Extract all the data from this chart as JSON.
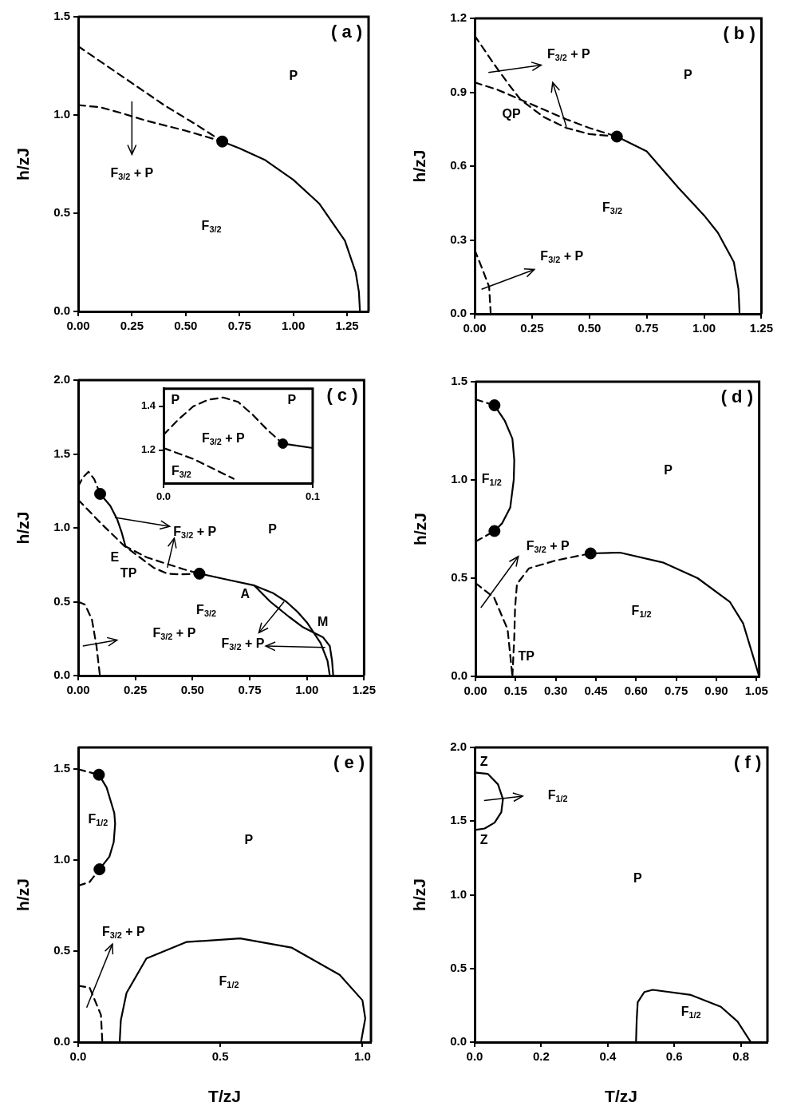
{
  "chart_data": [
    {
      "type": "line",
      "ylabel": "h/zJ",
      "xlim": [
        0,
        1.35
      ],
      "ylim": [
        0,
        1.5
      ],
      "xticks": [
        {
          "value": 0,
          "label": "0.00"
        },
        0.25,
        {
          "value": 0.5,
          "label": "0.50"
        },
        0.75,
        {
          "value": 1,
          "label": "1.00"
        },
        1.25
      ],
      "yticks": [
        {
          "value": 0,
          "label": "0.0"
        },
        0.5,
        {
          "value": 1,
          "label": "1.0"
        },
        1.5
      ],
      "series": [
        {
          "color": "#000000",
          "line_style": "dashed",
          "x": [
            0,
            0.2,
            0.4,
            0.55,
            0.67
          ],
          "values": [
            1.35,
            1.2,
            1.05,
            0.95,
            0.865
          ]
        },
        {
          "color": "#000000",
          "line_style": "dashed",
          "x": [
            0,
            0.1,
            0.2,
            0.32,
            0.5,
            0.67
          ],
          "values": [
            1.05,
            1.04,
            1.01,
            0.97,
            0.92,
            0.865
          ]
        },
        {
          "color": "#000000",
          "line_style": "solid",
          "x": [
            0.67,
            0.75,
            0.87,
            1.0,
            1.12,
            1.24,
            1.29,
            1.305,
            1.31
          ],
          "values": [
            0.865,
            0.83,
            0.77,
            0.67,
            0.55,
            0.36,
            0.2,
            0.1,
            0
          ]
        },
        {
          "type": "scatter",
          "marker": "circle",
          "color": "#000000",
          "x": [
            0.67
          ],
          "values": [
            0.865
          ]
        }
      ],
      "annotations": [
        "( a )",
        "P",
        "F$_{3/2}$ + P",
        "F$_{3/2}$"
      ]
    },
    {
      "type": "line",
      "ylabel": "h/zJ",
      "xlim": [
        0,
        1.25
      ],
      "ylim": [
        0,
        1.2
      ],
      "xticks": [
        {
          "value": 0,
          "label": "0.00"
        },
        0.25,
        {
          "value": 0.5,
          "label": "0.50"
        },
        0.75,
        {
          "value": 1,
          "label": "1.00"
        },
        1.25
      ],
      "yticks": [
        {
          "value": 0,
          "label": "0.0"
        },
        0.3,
        0.6,
        0.9,
        1.2
      ],
      "series": [
        {
          "color": "#000000",
          "line_style": "dashed",
          "x": [
            0,
            0.08,
            0.15,
            0.2,
            0.3,
            0.4,
            0.5,
            0.62
          ],
          "values": [
            1.13,
            1.02,
            0.93,
            0.87,
            0.8,
            0.755,
            0.73,
            0.72
          ]
        },
        {
          "color": "#000000",
          "line_style": "dashed",
          "x": [
            0,
            0.1,
            0.2,
            0.3,
            0.4,
            0.5,
            0.62
          ],
          "values": [
            0.94,
            0.91,
            0.87,
            0.83,
            0.79,
            0.755,
            0.72
          ]
        },
        {
          "color": "#000000",
          "line_style": "solid",
          "x": [
            0.62,
            0.75,
            0.89,
            1.0,
            1.06,
            1.13,
            1.15,
            1.155
          ],
          "values": [
            0.72,
            0.66,
            0.51,
            0.4,
            0.33,
            0.21,
            0.1,
            0
          ]
        },
        {
          "color": "#000000",
          "line_style": "dashed",
          "x": [
            0,
            0.03,
            0.063,
            0.07
          ],
          "values": [
            0.26,
            0.19,
            0.11,
            0
          ]
        },
        {
          "type": "scatter",
          "marker": "circle",
          "color": "#000000",
          "x": [
            0.62
          ],
          "values": [
            0.72
          ]
        }
      ],
      "annotations": [
        "( b )",
        "P",
        "F$_{3/2}$ + P",
        "QP",
        "F$_{3/2}$",
        "F$_{3/2}$ + P"
      ]
    },
    {
      "type": "line",
      "ylabel": "h/zJ",
      "xlim": [
        0,
        1.25
      ],
      "ylim": [
        0,
        2
      ],
      "xticks": [
        {
          "value": 0,
          "label": "0.00"
        },
        0.25,
        {
          "value": 0.5,
          "label": "0.50"
        },
        0.75,
        {
          "value": 1,
          "label": "1.00"
        },
        1.25
      ],
      "yticks": [
        {
          "value": 0,
          "label": "0.0"
        },
        0.5,
        {
          "value": 1,
          "label": "1.0"
        },
        1.5,
        {
          "value": 2,
          "label": "2.0"
        }
      ],
      "series": [
        {
          "color": "#000000",
          "line_style": "dashed",
          "x": [
            0,
            0.02,
            0.045,
            0.07,
            0.096
          ],
          "values": [
            1.28,
            1.34,
            1.38,
            1.33,
            1.23
          ]
        },
        {
          "color": "#000000",
          "line_style": "solid",
          "x": [
            0.096,
            0.14,
            0.17,
            0.19,
            0.206
          ],
          "values": [
            1.23,
            1.15,
            1.06,
            0.97,
            0.88
          ]
        },
        {
          "color": "#000000",
          "line_style": "dashed",
          "x": [
            0,
            0.1,
            0.2,
            0.27,
            0.33,
            0.39,
            0.45,
            0.53
          ],
          "values": [
            1.19,
            1.03,
            0.88,
            0.8,
            0.73,
            0.69,
            0.685,
            0.69
          ]
        },
        {
          "color": "#000000",
          "line_style": "dashed",
          "x": [
            0.2,
            0.3,
            0.4,
            0.46,
            0.53
          ],
          "values": [
            0.88,
            0.8,
            0.75,
            0.72,
            0.69
          ]
        },
        {
          "color": "#000000",
          "line_style": "solid",
          "x": [
            0.53,
            0.65,
            0.77,
            0.85,
            0.91,
            0.96,
            1.0,
            1.06,
            1.09,
            1.1
          ],
          "values": [
            0.69,
            0.65,
            0.61,
            0.56,
            0.5,
            0.43,
            0.36,
            0.22,
            0.1,
            0
          ]
        },
        {
          "color": "#000000",
          "line_style": "solid",
          "x": [
            0.77,
            0.84,
            0.92,
            0.98,
            1.03,
            1.07,
            1.1,
            1.11,
            1.115
          ],
          "values": [
            0.61,
            0.5,
            0.4,
            0.33,
            0.29,
            0.26,
            0.2,
            0.1,
            0
          ]
        },
        {
          "color": "#000000",
          "line_style": "dashed",
          "x": [
            0,
            0.03,
            0.06,
            0.08,
            0.095
          ],
          "values": [
            0.5,
            0.48,
            0.38,
            0.2,
            0
          ]
        },
        {
          "type": "scatter",
          "marker": "circle",
          "color": "#000000",
          "x": [
            0.096,
            0.53
          ],
          "values": [
            1.23,
            0.69
          ]
        }
      ],
      "annotations": [
        "( c )",
        {
          "text": "F$_{3/2}$ + P",
          "x": 0.16,
          "y": 1.07
        },
        "P",
        "E",
        "TP",
        "A",
        "M",
        "F$_{3/2}$",
        "F$_{3/2}$ + P",
        {
          "text": "F$_{3/2}$ + P",
          "x": 0.9,
          "y": 0.5
        }
      ]
    },
    {
      "type": "line",
      "xlim": [
        0,
        0.1
      ],
      "ylim": [
        1.05,
        1.48
      ],
      "xticks": [
        {
          "value": 0,
          "label": "0.0"
        },
        0.1
      ],
      "yticks": [
        1.2,
        1.4
      ],
      "series": [
        {
          "color": "#000000",
          "line_style": "dashed",
          "x": [
            0,
            0.01,
            0.02,
            0.03,
            0.04,
            0.05,
            0.06,
            0.07,
            0.08
          ],
          "values": [
            1.27,
            1.34,
            1.4,
            1.43,
            1.44,
            1.42,
            1.36,
            1.29,
            1.23
          ]
        },
        {
          "color": "#000000",
          "line_style": "solid",
          "x": [
            0.08,
            0.085,
            0.1
          ],
          "values": [
            1.23,
            1.225,
            1.21
          ]
        },
        {
          "color": "#000000",
          "line_style": "dashed",
          "x": [
            0,
            0.02,
            0.047
          ],
          "values": [
            1.21,
            1.16,
            1.07
          ]
        },
        {
          "type": "scatter",
          "marker": "circle",
          "color": "#000000",
          "x": [
            0.08
          ],
          "values": [
            1.23
          ]
        }
      ],
      "annotations": [
        "P",
        "P",
        "F$_{3/2}$ + P",
        "F$_{3/2}$"
      ]
    },
    {
      "type": "line",
      "ylabel": "h/zJ",
      "xlim": [
        0,
        1.06
      ],
      "ylim": [
        0,
        1.5
      ],
      "xticks": [
        {
          "value": 0,
          "label": "0.00"
        },
        0.15,
        {
          "value": 0.3,
          "label": "0.30"
        },
        0.45,
        {
          "value": 0.6,
          "label": "0.60"
        },
        0.75,
        {
          "value": 0.9,
          "label": "0.90"
        },
        1.05
      ],
      "yticks": [
        {
          "value": 0,
          "label": "0.0"
        },
        0.5,
        {
          "value": 1,
          "label": "1.0"
        },
        1.5
      ],
      "series": [
        {
          "color": "#000000",
          "line_style": "dashed",
          "x": [
            0,
            0.071
          ],
          "values": [
            1.41,
            1.38
          ]
        },
        {
          "color": "#000000",
          "line_style": "solid",
          "x": [
            0.071,
            0.11,
            0.138,
            0.145,
            0.143,
            0.13,
            0.1,
            0.071
          ],
          "values": [
            1.38,
            1.3,
            1.21,
            1.1,
            1.0,
            0.86,
            0.78,
            0.74
          ]
        },
        {
          "color": "#000000",
          "line_style": "dashed",
          "x": [
            0,
            0.071
          ],
          "values": [
            0.686,
            0.74
          ]
        },
        {
          "color": "#000000",
          "line_style": "dashed",
          "x": [
            0,
            0.07,
            0.12,
            0.138
          ],
          "values": [
            0.475,
            0.4,
            0.24,
            0
          ]
        },
        {
          "color": "#000000",
          "line_style": "dashed",
          "x": [
            0.138,
            0.145,
            0.148,
            0.155,
            0.2,
            0.3,
            0.43
          ],
          "values": [
            0,
            0.2,
            0.35,
            0.47,
            0.55,
            0.59,
            0.626
          ]
        },
        {
          "color": "#000000",
          "line_style": "solid",
          "x": [
            0.43,
            0.54,
            0.7,
            0.83,
            0.95,
            1.0,
            1.06
          ],
          "values": [
            0.626,
            0.63,
            0.58,
            0.5,
            0.38,
            0.27,
            0
          ]
        },
        {
          "type": "scatter",
          "marker": "circle",
          "color": "#000000",
          "x": [
            0.071,
            0.071,
            0.43
          ],
          "values": [
            1.38,
            0.74,
            0.626
          ]
        }
      ],
      "annotations": [
        "( d )",
        "P",
        "F$_{1/2}$",
        "F$_{3/2}$ + P",
        "F$_{1/2}$",
        "TP"
      ]
    },
    {
      "type": "line",
      "xlabel": "T/zJ",
      "ylabel": "h/zJ",
      "xlim": [
        0,
        1.03
      ],
      "ylim": [
        0,
        1.62
      ],
      "xticks": [
        {
          "value": 0,
          "label": "0.0"
        },
        0.5,
        {
          "value": 1,
          "label": "1.0"
        }
      ],
      "yticks": [
        {
          "value": 0,
          "label": "0.0"
        },
        0.5,
        {
          "value": 1,
          "label": "1.0"
        },
        1.5
      ],
      "series": [
        {
          "color": "#000000",
          "line_style": "dashed",
          "x": [
            0,
            0.073
          ],
          "values": [
            1.5,
            1.47
          ]
        },
        {
          "color": "#000000",
          "line_style": "solid",
          "x": [
            0.073,
            0.1,
            0.127,
            0.13,
            0.125,
            0.11,
            0.075
          ],
          "values": [
            1.47,
            1.4,
            1.26,
            1.2,
            1.1,
            1.02,
            0.95
          ]
        },
        {
          "color": "#000000",
          "line_style": "dashed",
          "x": [
            0,
            0.04,
            0.075
          ],
          "values": [
            0.86,
            0.88,
            0.95
          ]
        },
        {
          "color": "#000000",
          "line_style": "dashed",
          "x": [
            0,
            0.04,
            0.08,
            0.085
          ],
          "values": [
            0.31,
            0.3,
            0.15,
            0
          ]
        },
        {
          "color": "#000000",
          "line_style": "solid",
          "x": [
            0.146,
            0.15,
            0.17,
            0.24,
            0.38,
            0.57,
            0.75,
            0.92,
            1.0,
            1.01,
            0.995
          ],
          "values": [
            0,
            0.12,
            0.27,
            0.46,
            0.55,
            0.57,
            0.52,
            0.37,
            0.23,
            0.13,
            0
          ]
        },
        {
          "type": "scatter",
          "marker": "circle",
          "color": "#000000",
          "x": [
            0.073,
            0.075
          ],
          "values": [
            1.47,
            0.95
          ]
        }
      ],
      "annotations": [
        "( e )",
        "F$_{1/2}$",
        "P",
        "F$_{3/2}$ + P",
        "F$_{1/2}$"
      ]
    },
    {
      "type": "line",
      "xlabel": "T/zJ",
      "ylabel": "h/zJ",
      "xlim": [
        0,
        0.88
      ],
      "ylim": [
        0,
        2
      ],
      "xticks": [
        {
          "value": 0,
          "label": "0.0"
        },
        0.2,
        0.4,
        0.6,
        0.8
      ],
      "yticks": [
        {
          "value": 0,
          "label": "0.0"
        },
        0.5,
        {
          "value": 1,
          "label": "1.0"
        },
        1.5,
        {
          "value": 2,
          "label": "2.0"
        }
      ],
      "series": [
        {
          "color": "#000000",
          "line_style": "solid",
          "x": [
            0,
            0.04,
            0.07,
            0.085,
            0.08,
            0.06,
            0.03,
            0
          ],
          "values": [
            1.83,
            1.82,
            1.75,
            1.65,
            1.56,
            1.49,
            1.45,
            1.44
          ]
        },
        {
          "color": "#000000",
          "line_style": "solid",
          "x": [
            0.485,
            0.487,
            0.49,
            0.51,
            0.535,
            0.65,
            0.74,
            0.79,
            0.83
          ],
          "values": [
            0,
            0.15,
            0.27,
            0.34,
            0.355,
            0.32,
            0.24,
            0.14,
            0
          ]
        }
      ],
      "annotations": [
        "( f )",
        "Z",
        "Z",
        "F$_{1/2}$",
        "P",
        "F$_{1/2}$"
      ]
    }
  ]
}
